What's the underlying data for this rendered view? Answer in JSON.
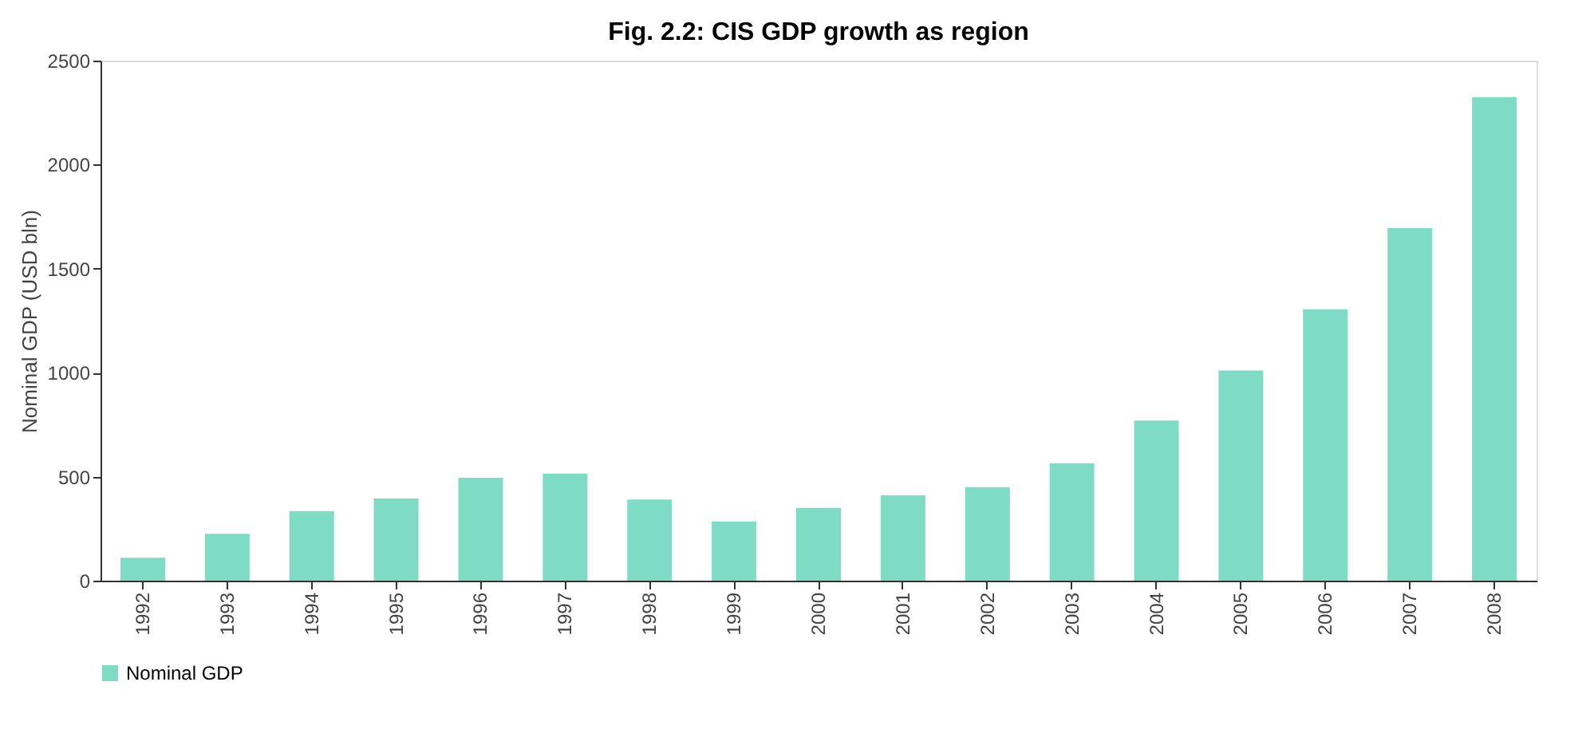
{
  "chart_data": {
    "type": "bar",
    "title": "Fig. 2.2: CIS GDP growth as region",
    "ylabel": "Nominal GDP (USD bln)",
    "categories": [
      "1992",
      "1993",
      "1994",
      "1995",
      "1996",
      "1997",
      "1998",
      "1999",
      "2000",
      "2001",
      "2002",
      "2003",
      "2004",
      "2005",
      "2006",
      "2007",
      "2008"
    ],
    "series": [
      {
        "name": "Nominal GDP",
        "color": "#7fdcc4",
        "values": [
          110,
          225,
          335,
          395,
          495,
          515,
          390,
          285,
          350,
          410,
          450,
          565,
          770,
          1010,
          1305,
          1695,
          2325
        ]
      }
    ],
    "ylim": [
      0,
      2500
    ],
    "yticks": [
      0,
      500,
      1000,
      1500,
      2000,
      2500
    ],
    "grid": false,
    "legend": "bottom"
  }
}
